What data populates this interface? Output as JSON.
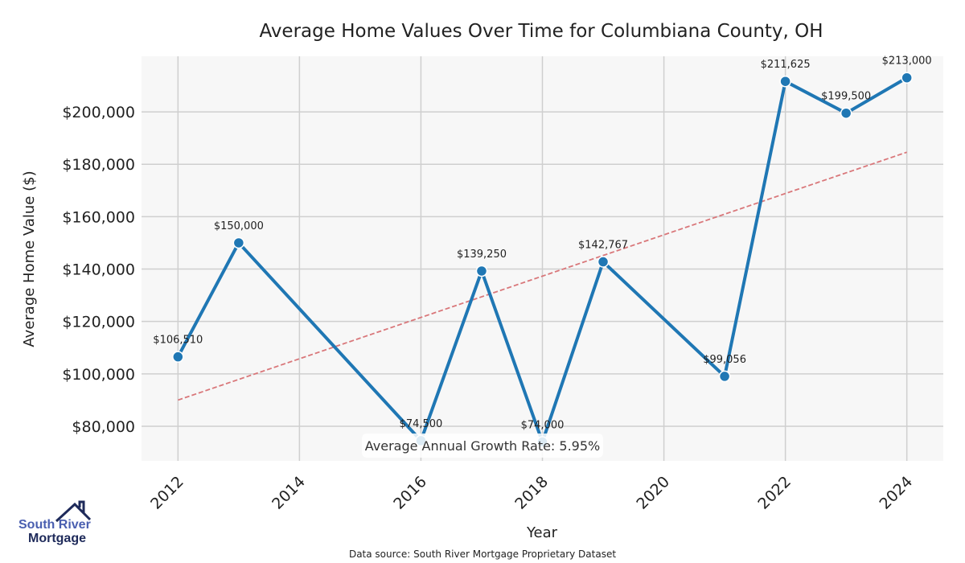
{
  "chart_data": {
    "type": "line",
    "title": "Average Home Values Over Time for Columbiana County, OH",
    "xlabel": "Year",
    "ylabel": "Average Home Value ($)",
    "xlim": [
      2011.4,
      2024.6
    ],
    "ylim": [
      66800,
      221200
    ],
    "x_ticks": [
      2012,
      2014,
      2016,
      2018,
      2020,
      2022,
      2024
    ],
    "y_ticks": [
      80000,
      100000,
      120000,
      140000,
      160000,
      180000,
      200000
    ],
    "y_tick_labels": [
      "$80,000",
      "$100,000",
      "$120,000",
      "$140,000",
      "$160,000",
      "$180,000",
      "$200,000"
    ],
    "grid": true,
    "series": [
      {
        "name": "Average Home Value",
        "color": "#1f77b4",
        "x": [
          2012,
          2013,
          2016,
          2017,
          2018,
          2019,
          2021,
          2022,
          2023,
          2024
        ],
        "values": [
          106510,
          150000,
          74500,
          139250,
          74000,
          142767,
          99056,
          211625,
          199500,
          213000
        ],
        "labels": [
          "$106,510",
          "$150,000",
          "$74,500",
          "$139,250",
          "$74,000",
          "$142,767",
          "$99,056",
          "$211,625",
          "$199,500",
          "$213,000"
        ]
      }
    ],
    "trend_line": {
      "color": "#d9777a",
      "x": [
        2012,
        2024
      ],
      "values": [
        90000,
        184600
      ]
    },
    "annotation": "Average Annual Growth Rate: 5.95%",
    "source": "Data source: South River Mortgage Proprietary Dataset"
  },
  "logo": {
    "line1": "South River",
    "line2": "Mortgage"
  }
}
